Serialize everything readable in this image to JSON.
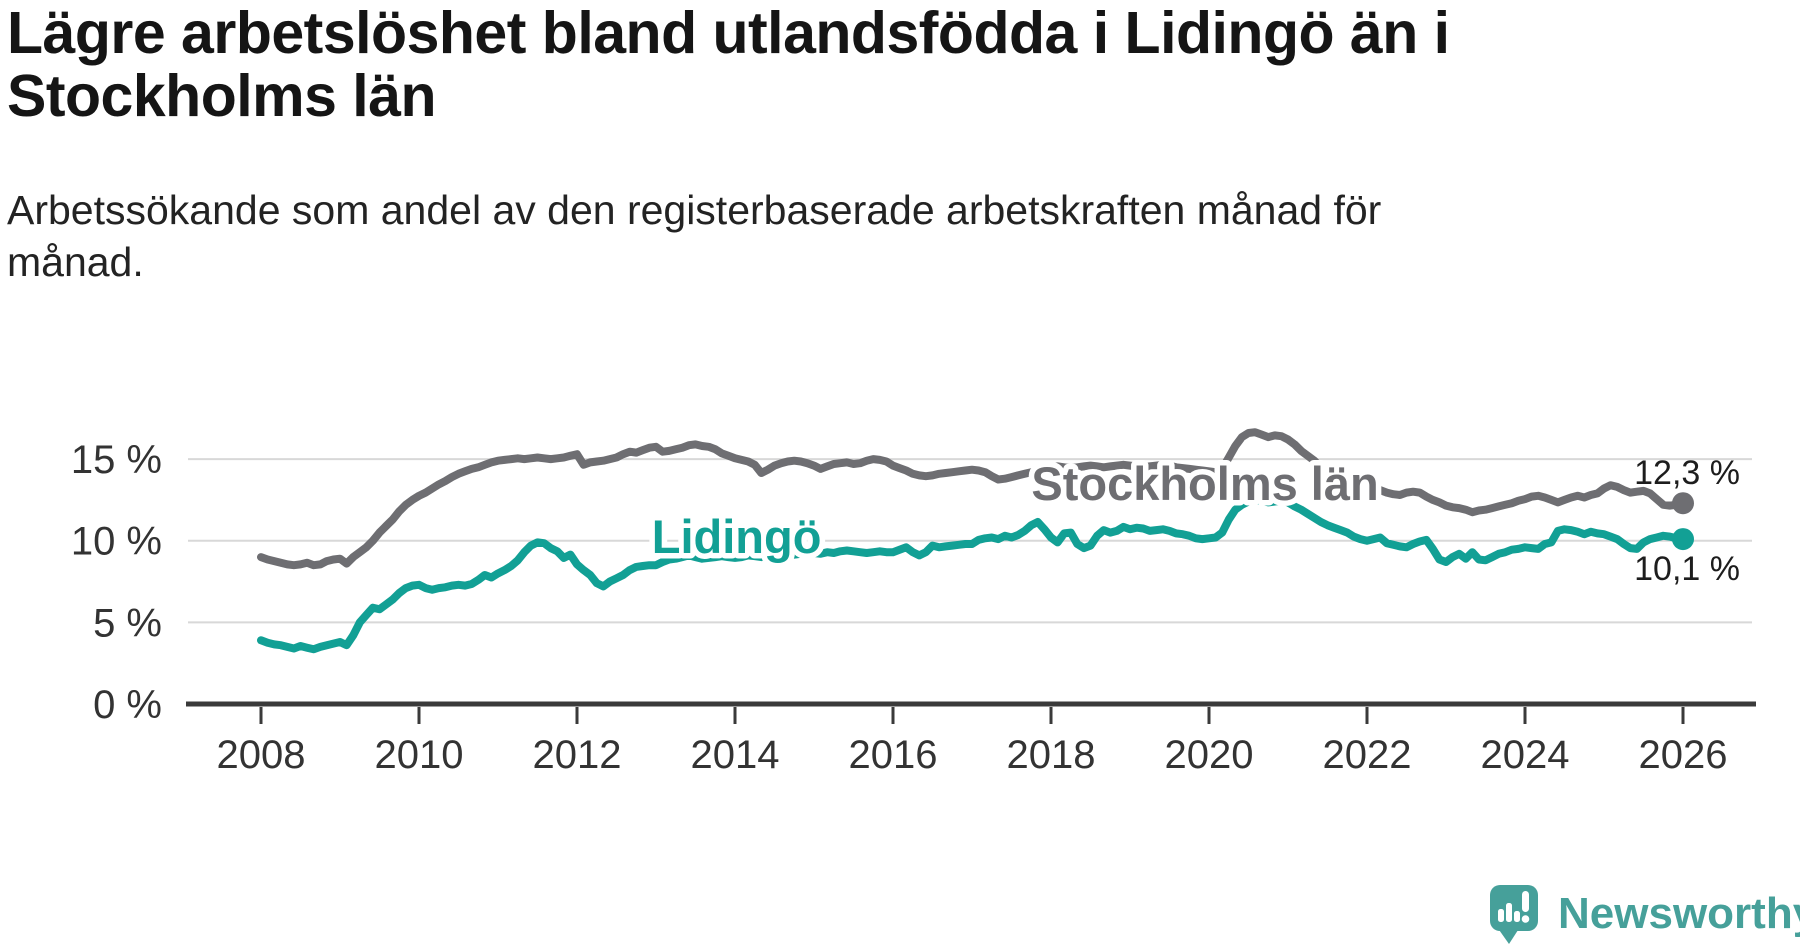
{
  "title": {
    "lines": [
      "Lägre arbetslöshet bland utlandsfödda i Lidingö än i",
      "Stockholms län"
    ],
    "full": "Lägre arbetslöshet bland utlandsfödda i Lidingö än i Stockholms län"
  },
  "subtitle": {
    "lines": [
      "Arbetssökande som andel av den registerbaserade arbetskraften månad för",
      "månad."
    ],
    "full": "Arbetssökande som andel av den registerbaserade arbetskraften månad för månad."
  },
  "footer": {
    "logo_text": "Newsworthy",
    "logo_color": "#46a09a"
  },
  "chart_data": {
    "type": "line",
    "title": "Lägre arbetslöshet bland utlandsfödda i Lidingö än i Stockholms län",
    "subtitle": "Arbetssökande som andel av den registerbaserade arbetskraften månad för månad.",
    "xlabel": "",
    "ylabel": "",
    "x_start": "2008-01",
    "frequency": "monthly",
    "x_ticks": [
      2008,
      2010,
      2012,
      2014,
      2016,
      2018,
      2020,
      2022,
      2024,
      2026
    ],
    "y_ticks": [
      {
        "value": 15,
        "label": "15 %"
      },
      {
        "value": 10,
        "label": "10 %"
      },
      {
        "value": 5,
        "label": "5 %"
      },
      {
        "value": 0,
        "label": "0 %"
      }
    ],
    "ylim": [
      0,
      17.5
    ],
    "grid": "horizontal",
    "legend_position": "inline-labels",
    "series": [
      {
        "name": "Stockholms län",
        "color": "#6e6e72",
        "end_label": "12,3 %",
        "end_value": 12.3,
        "label_pos_year": 2019.95,
        "label_pos_value": 12.5,
        "values": [
          9.0,
          8.85,
          8.75,
          8.65,
          8.55,
          8.5,
          8.55,
          8.65,
          8.5,
          8.55,
          8.75,
          8.85,
          8.9,
          8.6,
          9.0,
          9.3,
          9.6,
          10.0,
          10.5,
          10.9,
          11.3,
          11.8,
          12.2,
          12.5,
          12.75,
          12.95,
          13.2,
          13.45,
          13.65,
          13.9,
          14.1,
          14.25,
          14.4,
          14.5,
          14.65,
          14.8,
          14.9,
          14.95,
          15.0,
          15.05,
          15.0,
          15.05,
          15.1,
          15.05,
          15.0,
          15.05,
          15.1,
          15.2,
          15.3,
          14.65,
          14.8,
          14.85,
          14.9,
          15.0,
          15.1,
          15.3,
          15.45,
          15.4,
          15.55,
          15.7,
          15.75,
          15.45,
          15.5,
          15.6,
          15.7,
          15.85,
          15.9,
          15.8,
          15.75,
          15.6,
          15.35,
          15.2,
          15.05,
          14.95,
          14.85,
          14.65,
          14.15,
          14.35,
          14.6,
          14.75,
          14.85,
          14.9,
          14.85,
          14.75,
          14.6,
          14.4,
          14.55,
          14.7,
          14.75,
          14.8,
          14.7,
          14.75,
          14.9,
          15.0,
          14.95,
          14.85,
          14.6,
          14.45,
          14.3,
          14.1,
          14.0,
          13.95,
          14.0,
          14.1,
          14.15,
          14.2,
          14.25,
          14.3,
          14.35,
          14.3,
          14.2,
          13.95,
          13.75,
          13.8,
          13.9,
          14.0,
          14.1,
          14.2,
          14.3,
          14.4,
          14.5,
          14.55,
          14.5,
          14.45,
          14.5,
          14.55,
          14.6,
          14.55,
          14.5,
          14.55,
          14.6,
          14.65,
          14.6,
          14.55,
          14.5,
          14.55,
          14.6,
          14.65,
          14.6,
          14.5,
          14.45,
          14.4,
          14.35,
          14.3,
          14.25,
          14.2,
          14.4,
          15.1,
          15.8,
          16.35,
          16.6,
          16.65,
          16.5,
          16.35,
          16.45,
          16.4,
          16.2,
          15.9,
          15.5,
          15.2,
          14.9,
          14.5,
          14.2,
          14.0,
          13.9,
          13.75,
          13.65,
          13.55,
          13.5,
          13.3,
          13.1,
          12.95,
          12.85,
          12.8,
          12.95,
          13.0,
          12.95,
          12.7,
          12.5,
          12.35,
          12.15,
          12.05,
          12.0,
          11.9,
          11.75,
          11.85,
          11.9,
          12.0,
          12.1,
          12.2,
          12.3,
          12.45,
          12.55,
          12.7,
          12.75,
          12.65,
          12.5,
          12.35,
          12.5,
          12.65,
          12.75,
          12.65,
          12.8,
          12.9,
          13.2,
          13.4,
          13.3,
          13.1,
          12.95,
          13.0,
          13.05,
          12.9,
          12.55,
          12.2,
          12.15,
          12.2,
          12.3
        ]
      },
      {
        "name": "Lidingö",
        "color": "#12a095",
        "end_label": "10,1 %",
        "end_value": 10.1,
        "label_pos_year": 2014.02,
        "label_pos_value": 9.3,
        "values": [
          3.9,
          3.75,
          3.65,
          3.6,
          3.5,
          3.4,
          3.55,
          3.45,
          3.35,
          3.5,
          3.6,
          3.7,
          3.8,
          3.6,
          4.2,
          5.0,
          5.45,
          5.9,
          5.8,
          6.1,
          6.4,
          6.8,
          7.1,
          7.25,
          7.3,
          7.1,
          7.0,
          7.1,
          7.15,
          7.25,
          7.3,
          7.25,
          7.35,
          7.6,
          7.9,
          7.75,
          8.0,
          8.2,
          8.45,
          8.8,
          9.3,
          9.7,
          9.9,
          9.85,
          9.55,
          9.35,
          8.95,
          9.15,
          8.55,
          8.2,
          7.9,
          7.4,
          7.2,
          7.5,
          7.7,
          7.9,
          8.2,
          8.4,
          8.45,
          8.5,
          8.5,
          8.7,
          8.85,
          8.9,
          9.0,
          9.1,
          9.0,
          8.9,
          8.95,
          9.0,
          9.05,
          9.0,
          8.95,
          9.0,
          9.1,
          9.05,
          9.0,
          9.1,
          9.15,
          9.1,
          9.2,
          9.15,
          9.2,
          9.25,
          9.25,
          9.2,
          9.3,
          9.25,
          9.35,
          9.4,
          9.35,
          9.3,
          9.25,
          9.3,
          9.35,
          9.3,
          9.3,
          9.45,
          9.6,
          9.3,
          9.1,
          9.3,
          9.7,
          9.6,
          9.65,
          9.7,
          9.75,
          9.8,
          9.8,
          10.05,
          10.15,
          10.2,
          10.1,
          10.3,
          10.2,
          10.35,
          10.6,
          10.95,
          11.15,
          10.7,
          10.2,
          9.9,
          10.45,
          10.5,
          9.8,
          9.55,
          9.7,
          10.3,
          10.65,
          10.5,
          10.6,
          10.85,
          10.7,
          10.8,
          10.75,
          10.6,
          10.65,
          10.7,
          10.6,
          10.45,
          10.4,
          10.3,
          10.15,
          10.1,
          10.15,
          10.2,
          10.5,
          11.3,
          11.9,
          12.2,
          12.4,
          12.5,
          12.45,
          12.35,
          12.4,
          12.45,
          12.35,
          12.1,
          11.9,
          11.65,
          11.4,
          11.15,
          10.95,
          10.8,
          10.65,
          10.5,
          10.25,
          10.1,
          10.0,
          10.1,
          10.2,
          9.85,
          9.75,
          9.65,
          9.6,
          9.8,
          9.95,
          10.05,
          9.5,
          8.85,
          8.7,
          9.0,
          9.2,
          8.9,
          9.3,
          8.85,
          8.8,
          9.0,
          9.2,
          9.3,
          9.45,
          9.5,
          9.6,
          9.55,
          9.5,
          9.8,
          9.9,
          10.6,
          10.7,
          10.65,
          10.55,
          10.4,
          10.55,
          10.45,
          10.4,
          10.25,
          10.1,
          9.8,
          9.55,
          9.5,
          9.9,
          10.1,
          10.2,
          10.3,
          10.25,
          10.15,
          10.1
        ]
      }
    ]
  }
}
